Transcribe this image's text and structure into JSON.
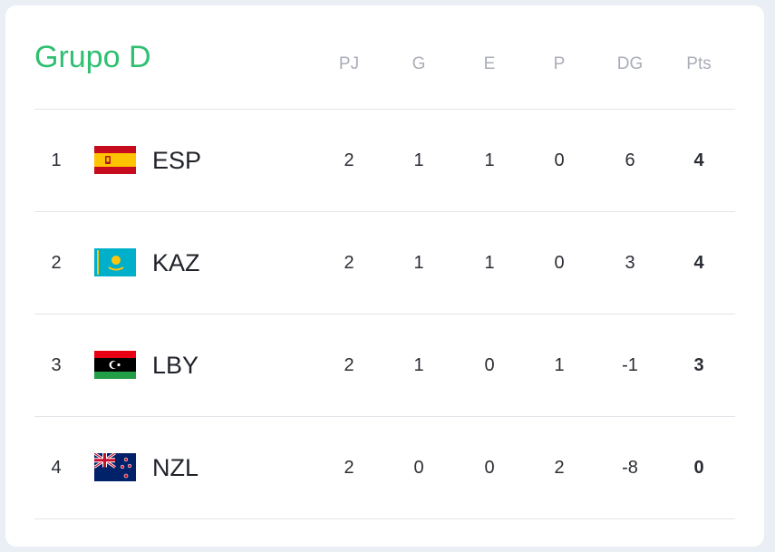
{
  "header": {
    "title": "Grupo D"
  },
  "table": {
    "columns": [
      "PJ",
      "G",
      "E",
      "P",
      "DG",
      "Pts"
    ],
    "rows": [
      {
        "rank": 1,
        "team": "ESP",
        "stats": [
          2,
          1,
          1,
          0,
          6,
          4
        ]
      },
      {
        "rank": 2,
        "team": "KAZ",
        "stats": [
          2,
          1,
          1,
          0,
          3,
          4
        ]
      },
      {
        "rank": 3,
        "team": "LBY",
        "stats": [
          2,
          1,
          0,
          1,
          -1,
          3
        ]
      },
      {
        "rank": 4,
        "team": "NZL",
        "stats": [
          2,
          0,
          0,
          2,
          -8,
          0
        ]
      }
    ]
  }
}
